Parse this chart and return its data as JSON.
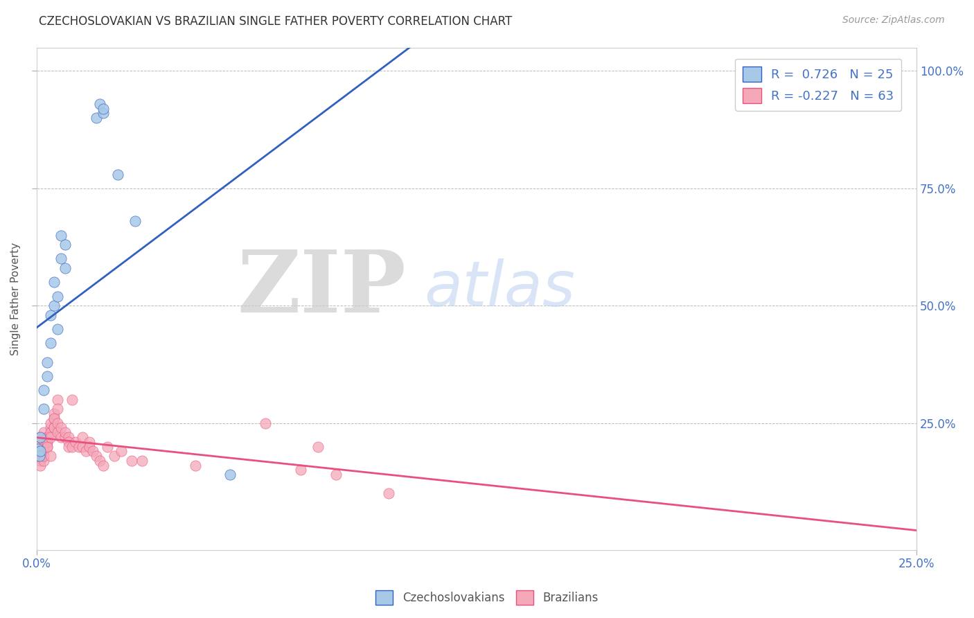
{
  "title": "CZECHOSLOVAKIAN VS BRAZILIAN SINGLE FATHER POVERTY CORRELATION CHART",
  "source": "Source: ZipAtlas.com",
  "ylabel": "Single Father Poverty",
  "right_yticks": [
    "100.0%",
    "75.0%",
    "50.0%",
    "25.0%"
  ],
  "right_ytick_vals": [
    1.0,
    0.75,
    0.5,
    0.25
  ],
  "legend_blue_label": "R =  0.726   N = 25",
  "legend_pink_label": "R = -0.227   N = 63",
  "blue_color": "#A8C8E8",
  "pink_color": "#F4A8B8",
  "trend_blue": "#3060C0",
  "trend_pink": "#E85080",
  "xlim": [
    0,
    0.25
  ],
  "ylim": [
    -0.02,
    1.05
  ],
  "background_color": "#FFFFFF",
  "grid_color": "#BBBBBB",
  "blue_scatter": [
    [
      0.0005,
      0.195
    ],
    [
      0.0008,
      0.18
    ],
    [
      0.001,
      0.22
    ],
    [
      0.001,
      0.19
    ],
    [
      0.002,
      0.28
    ],
    [
      0.002,
      0.32
    ],
    [
      0.003,
      0.35
    ],
    [
      0.003,
      0.38
    ],
    [
      0.004,
      0.42
    ],
    [
      0.004,
      0.48
    ],
    [
      0.005,
      0.5
    ],
    [
      0.005,
      0.55
    ],
    [
      0.006,
      0.45
    ],
    [
      0.006,
      0.52
    ],
    [
      0.007,
      0.6
    ],
    [
      0.007,
      0.65
    ],
    [
      0.008,
      0.58
    ],
    [
      0.008,
      0.63
    ],
    [
      0.017,
      0.9
    ],
    [
      0.018,
      0.93
    ],
    [
      0.019,
      0.91
    ],
    [
      0.019,
      0.92
    ],
    [
      0.023,
      0.78
    ],
    [
      0.028,
      0.68
    ],
    [
      0.055,
      0.14
    ]
  ],
  "pink_scatter": [
    [
      0.0005,
      0.19
    ],
    [
      0.0008,
      0.18
    ],
    [
      0.001,
      0.17
    ],
    [
      0.001,
      0.22
    ],
    [
      0.001,
      0.2
    ],
    [
      0.001,
      0.16
    ],
    [
      0.002,
      0.17
    ],
    [
      0.002,
      0.21
    ],
    [
      0.002,
      0.2
    ],
    [
      0.002,
      0.19
    ],
    [
      0.002,
      0.18
    ],
    [
      0.002,
      0.23
    ],
    [
      0.003,
      0.22
    ],
    [
      0.003,
      0.21
    ],
    [
      0.003,
      0.2
    ],
    [
      0.003,
      0.22
    ],
    [
      0.003,
      0.21
    ],
    [
      0.003,
      0.2
    ],
    [
      0.004,
      0.18
    ],
    [
      0.004,
      0.24
    ],
    [
      0.004,
      0.23
    ],
    [
      0.004,
      0.22
    ],
    [
      0.004,
      0.25
    ],
    [
      0.005,
      0.24
    ],
    [
      0.005,
      0.26
    ],
    [
      0.005,
      0.24
    ],
    [
      0.005,
      0.27
    ],
    [
      0.005,
      0.26
    ],
    [
      0.006,
      0.3
    ],
    [
      0.006,
      0.28
    ],
    [
      0.006,
      0.25
    ],
    [
      0.006,
      0.23
    ],
    [
      0.007,
      0.22
    ],
    [
      0.007,
      0.24
    ],
    [
      0.008,
      0.22
    ],
    [
      0.008,
      0.23
    ],
    [
      0.009,
      0.22
    ],
    [
      0.009,
      0.21
    ],
    [
      0.009,
      0.2
    ],
    [
      0.01,
      0.3
    ],
    [
      0.01,
      0.2
    ],
    [
      0.011,
      0.21
    ],
    [
      0.012,
      0.2
    ],
    [
      0.013,
      0.22
    ],
    [
      0.013,
      0.2
    ],
    [
      0.014,
      0.19
    ],
    [
      0.015,
      0.21
    ],
    [
      0.015,
      0.2
    ],
    [
      0.016,
      0.19
    ],
    [
      0.017,
      0.18
    ],
    [
      0.018,
      0.17
    ],
    [
      0.019,
      0.16
    ],
    [
      0.02,
      0.2
    ],
    [
      0.022,
      0.18
    ],
    [
      0.024,
      0.19
    ],
    [
      0.027,
      0.17
    ],
    [
      0.03,
      0.17
    ],
    [
      0.045,
      0.16
    ],
    [
      0.065,
      0.25
    ],
    [
      0.075,
      0.15
    ],
    [
      0.08,
      0.2
    ],
    [
      0.085,
      0.14
    ],
    [
      0.1,
      0.1
    ]
  ]
}
